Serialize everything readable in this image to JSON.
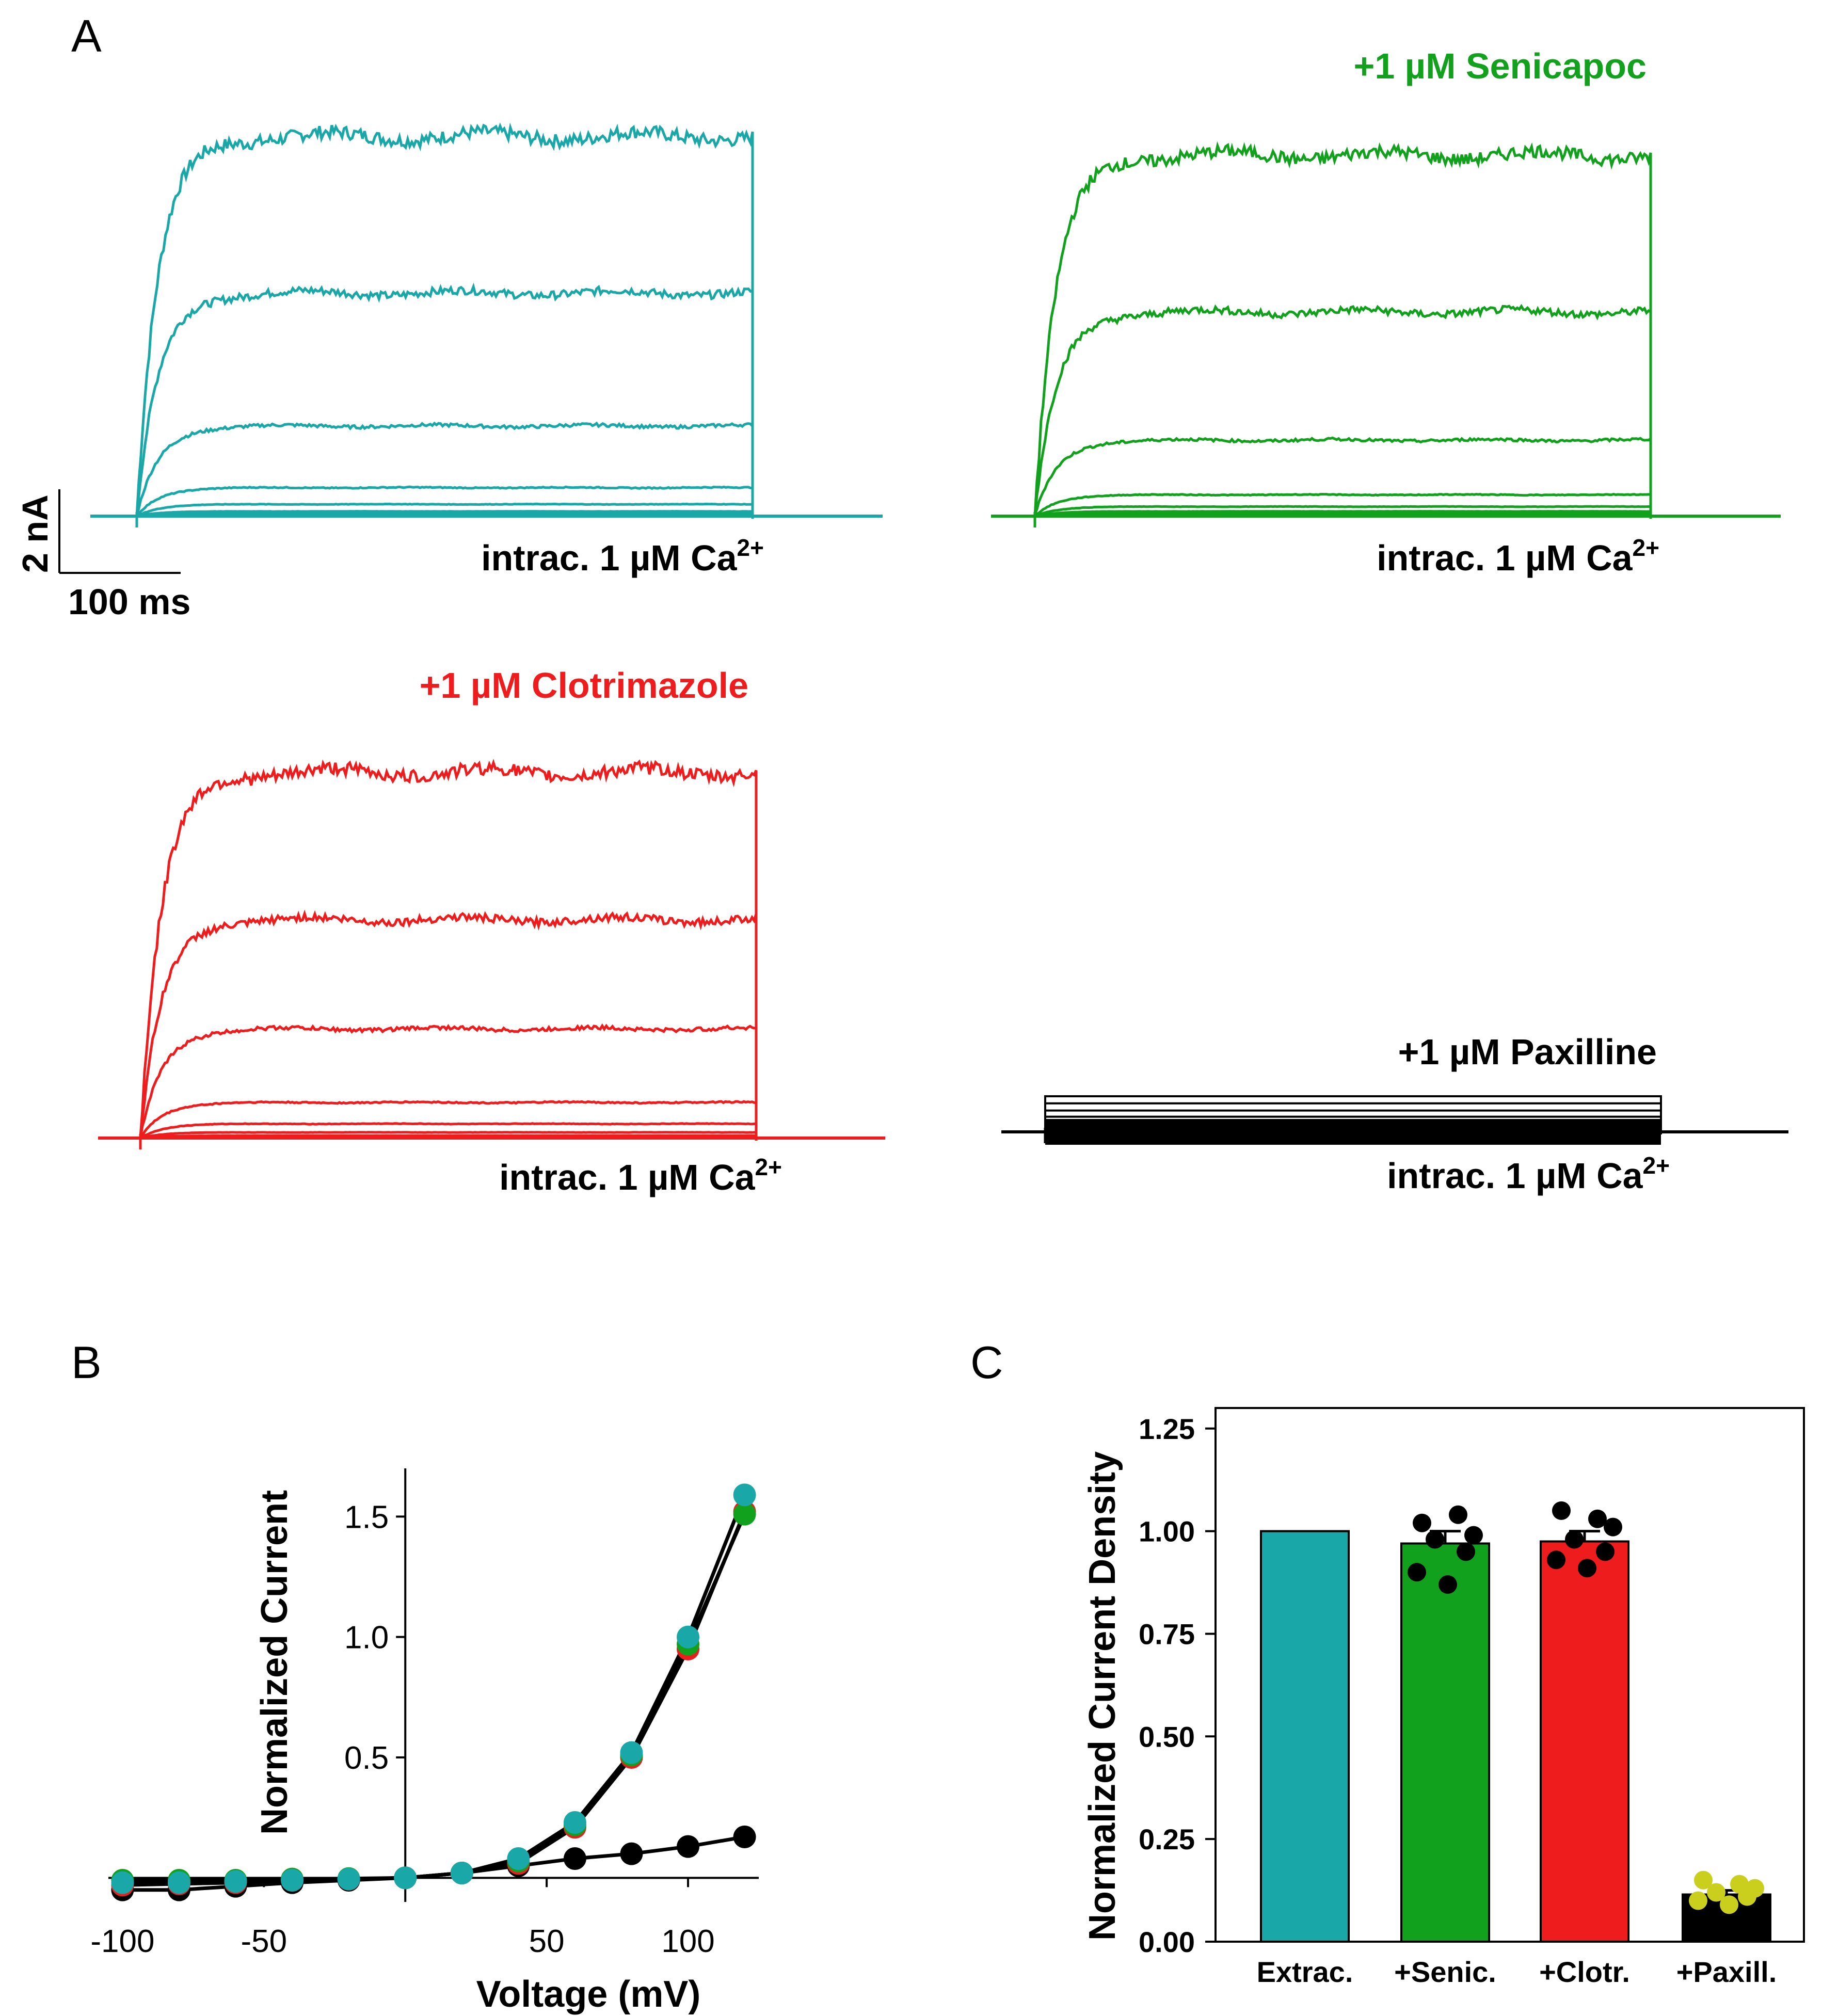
{
  "colors": {
    "control": "#1aa7a8",
    "senicapoc": "#11a11d",
    "clotrimazole": "#ee1c1c",
    "paxilline": "#000000",
    "paxilline_points": "#c9cf1c"
  },
  "panel_a": {
    "label": "A",
    "scale_bar": {
      "y_label": "2 nA",
      "x_label": "100 ms"
    },
    "traces": [
      {
        "color": "control",
        "title": "",
        "caption_main": "intrac. 1 µM Ca",
        "caption_sup": "2+",
        "levels_nA": [
          8.0,
          4.7,
          1.9,
          0.6,
          0.25,
          0.1,
          0.05
        ]
      },
      {
        "color": "senicapoc",
        "title": "+1 µM Senicapoc",
        "caption_main": "intrac. 1 µM Ca",
        "caption_sup": "2+",
        "levels_nA": [
          7.6,
          4.3,
          1.6,
          0.45,
          0.2,
          0.1,
          0.05
        ]
      },
      {
        "color": "clotrimazole",
        "title": "+1 µM Clotrimazole",
        "caption_main": "intrac. 1 µM Ca",
        "caption_sup": "2+",
        "levels_nA": [
          7.7,
          4.6,
          2.3,
          0.75,
          0.3,
          0.12,
          0.05
        ]
      },
      {
        "color": "paxilline",
        "title": "+1 µM Paxilline",
        "caption_main": "intrac. 1 µM Ca",
        "caption_sup": "2+",
        "levels_nA": [
          0.75,
          0.6,
          0.45,
          0.32,
          0.2,
          0.1
        ]
      }
    ]
  },
  "chart_data": [
    {
      "panel": "B",
      "type": "line",
      "xlabel": "Voltage (mV)",
      "ylabel": "Normalized Current",
      "xlim": [
        -105,
        125
      ],
      "ylim": [
        -0.1,
        1.7
      ],
      "xticks": [
        "-100",
        "-50",
        "50",
        "100"
      ],
      "xtick_values": [
        -100,
        -50,
        50,
        100
      ],
      "yticks": [
        "0.5",
        "1.0",
        "1.5"
      ],
      "ytick_values": [
        0.5,
        1.0,
        1.5
      ],
      "x": [
        -100,
        -80,
        -60,
        -40,
        -20,
        0,
        20,
        40,
        60,
        80,
        100,
        120
      ],
      "series": [
        {
          "name": "Extrac.",
          "color": "control",
          "values": [
            -0.02,
            -0.02,
            -0.015,
            -0.01,
            -0.005,
            0.0,
            0.02,
            0.08,
            0.23,
            0.52,
            1.0,
            1.59
          ]
        },
        {
          "name": "+Senic.",
          "color": "senicapoc",
          "values": [
            -0.01,
            -0.01,
            -0.01,
            -0.005,
            -0.003,
            0.0,
            0.02,
            0.07,
            0.22,
            0.51,
            0.97,
            1.51
          ]
        },
        {
          "name": "+Clotr.",
          "color": "clotrimazole",
          "values": [
            -0.03,
            -0.025,
            -0.02,
            -0.01,
            -0.005,
            0.0,
            0.02,
            0.06,
            0.21,
            0.5,
            0.95,
            1.52
          ]
        },
        {
          "name": "+Paxill.",
          "color": "paxilline",
          "values": [
            -0.05,
            -0.05,
            -0.035,
            -0.02,
            -0.01,
            0.0,
            0.02,
            0.05,
            0.08,
            0.1,
            0.13,
            0.17
          ]
        }
      ]
    },
    {
      "panel": "C",
      "type": "bar",
      "ylabel": "Normalized Current Density",
      "ylim": [
        0.0,
        1.3
      ],
      "yticks": [
        "0.00",
        "0.25",
        "0.50",
        "0.75",
        "1.00",
        "1.25"
      ],
      "ytick_values": [
        0.0,
        0.25,
        0.5,
        0.75,
        1.0,
        1.25
      ],
      "categories": [
        "Extrac.",
        "+Senic.",
        "+Clotr.",
        "+Paxill."
      ],
      "values": [
        1.0,
        0.97,
        0.975,
        0.115
      ],
      "errors": [
        0.0,
        0.03,
        0.025,
        0.01
      ],
      "bar_colors": [
        "control",
        "senicapoc",
        "clotrimazole",
        "paxilline"
      ],
      "points": [
        [],
        [
          1.02,
          1.04,
          0.99,
          0.98,
          0.95,
          0.9,
          0.87
        ],
        [
          1.05,
          1.03,
          1.01,
          0.98,
          0.95,
          0.93,
          0.91
        ],
        [
          0.15,
          0.14,
          0.13,
          0.12,
          0.11,
          0.1,
          0.09
        ]
      ],
      "point_color": [
        "",
        "#000000",
        "#000000",
        "paxilline_points"
      ]
    }
  ]
}
